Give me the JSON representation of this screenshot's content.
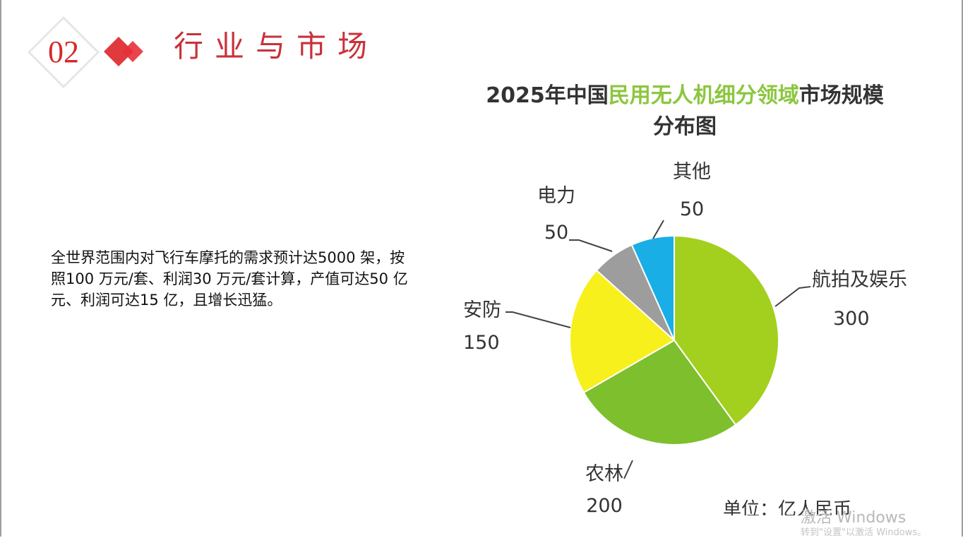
{
  "header": {
    "number": "02",
    "title": "行业与市场"
  },
  "body": {
    "text": "全世界范围内对飞行车摩托的需求预计达5000 架，按照100 万元/套、利润30 万元/套计算，产值可达50 亿元、利润可达15 亿，且增长迅猛。"
  },
  "chart_data": {
    "type": "pie",
    "title_part1": "2025年中国",
    "title_highlight": "民用无人机细分领域",
    "title_part2": "市场规模",
    "title_line2": "分布图",
    "unit": "单位：亿人民币",
    "slices": [
      {
        "name": "航拍及娱乐",
        "value": 300,
        "color": "#a3cf1e"
      },
      {
        "name": "农林",
        "value": 200,
        "color": "#7ebf2d"
      },
      {
        "name": "安防",
        "value": 150,
        "color": "#f7f01c"
      },
      {
        "name": "电力",
        "value": 50,
        "color": "#9d9d9d"
      },
      {
        "name": "其他",
        "value": 50,
        "color": "#19aee6"
      }
    ]
  },
  "watermark": {
    "line1": "激活 Windows",
    "line2": "转到\"设置\"以激活 Windows。"
  },
  "colors": {
    "accent": "#d42a2a",
    "title": "#c8323a",
    "highlight": "#8cc63f"
  }
}
